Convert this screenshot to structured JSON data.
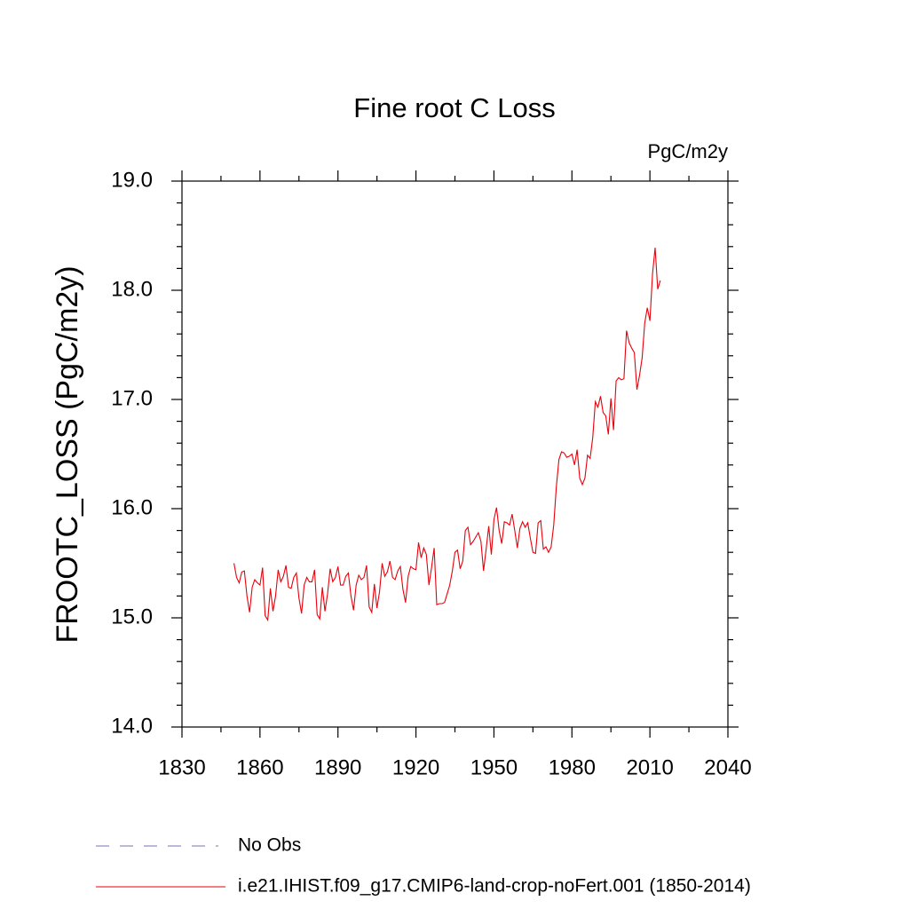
{
  "chart_data": {
    "type": "line",
    "title": "Fine root C Loss",
    "units": "PgC/m2y",
    "ylabel": "FROOTC_LOSS  (PgC/m2y)",
    "xlim": [
      1830,
      2040
    ],
    "xticks": [
      1830,
      1860,
      1890,
      1920,
      1950,
      1980,
      2010,
      2040
    ],
    "xminorticks": [
      1845,
      1875,
      1905,
      1935,
      1965,
      1995,
      2025
    ],
    "ylim": [
      14,
      19
    ],
    "yticks": [
      {
        "value": 14,
        "label": "14.0"
      },
      {
        "value": 15,
        "label": "15.0"
      },
      {
        "value": 16,
        "label": "16.0"
      },
      {
        "value": 17,
        "label": "17.0"
      },
      {
        "value": 18,
        "label": "18.0"
      },
      {
        "value": 19,
        "label": "19.0"
      }
    ],
    "yminorticks": [
      14.2,
      14.4,
      14.6,
      14.8,
      15.2,
      15.4,
      15.6,
      15.8,
      16.2,
      16.4,
      16.6,
      16.8,
      17.2,
      17.4,
      17.6,
      17.8,
      18.2,
      18.4,
      18.6,
      18.8
    ],
    "legend_items": [
      {
        "name": "No Obs",
        "color": "#7b6fb8",
        "dashed": true
      }
    ],
    "x": [
      1850,
      1851,
      1852,
      1853,
      1854,
      1855,
      1856,
      1857,
      1858,
      1859,
      1860,
      1861,
      1862,
      1863,
      1864,
      1865,
      1866,
      1867,
      1868,
      1869,
      1870,
      1871,
      1872,
      1873,
      1874,
      1875,
      1876,
      1877,
      1878,
      1879,
      1880,
      1881,
      1882,
      1883,
      1884,
      1885,
      1886,
      1887,
      1888,
      1889,
      1890,
      1891,
      1892,
      1893,
      1894,
      1895,
      1896,
      1897,
      1898,
      1899,
      1900,
      1901,
      1902,
      1903,
      1904,
      1905,
      1906,
      1907,
      1908,
      1909,
      1910,
      1911,
      1912,
      1913,
      1914,
      1915,
      1916,
      1917,
      1918,
      1919,
      1920,
      1921,
      1922,
      1923,
      1924,
      1925,
      1926,
      1927,
      1928,
      1929,
      1930,
      1931,
      1932,
      1933,
      1934,
      1935,
      1936,
      1937,
      1938,
      1939,
      1940,
      1941,
      1942,
      1943,
      1944,
      1945,
      1946,
      1947,
      1948,
      1949,
      1950,
      1951,
      1952,
      1953,
      1954,
      1955,
      1956,
      1957,
      1958,
      1959,
      1960,
      1961,
      1962,
      1963,
      1964,
      1965,
      1966,
      1967,
      1968,
      1969,
      1970,
      1971,
      1972,
      1973,
      1974,
      1975,
      1976,
      1977,
      1978,
      1979,
      1980,
      1981,
      1982,
      1983,
      1984,
      1985,
      1986,
      1987,
      1988,
      1989,
      1990,
      1991,
      1992,
      1993,
      1994,
      1995,
      1996,
      1997,
      1998,
      1999,
      2000,
      2001,
      2002,
      2003,
      2004,
      2005,
      2006,
      2007,
      2008,
      2009,
      2010,
      2011,
      2012,
      2013,
      2014
    ],
    "series": [
      {
        "name": "i.e21.IHIST.f09_g17.CMIP6-land-crop-noFert.001 (1850-2014)",
        "color": "#e8000b",
        "values": [
          15.5,
          15.37,
          15.32,
          15.42,
          15.43,
          15.2,
          15.05,
          15.28,
          15.35,
          15.32,
          15.3,
          15.46,
          15.02,
          14.98,
          15.27,
          15.06,
          15.2,
          15.44,
          15.33,
          15.38,
          15.48,
          15.28,
          15.27,
          15.37,
          15.41,
          15.18,
          15.04,
          15.3,
          15.37,
          15.33,
          15.33,
          15.44,
          15.03,
          14.99,
          15.28,
          15.06,
          15.22,
          15.45,
          15.33,
          15.37,
          15.47,
          15.3,
          15.3,
          15.38,
          15.41,
          15.2,
          15.07,
          15.3,
          15.39,
          15.35,
          15.37,
          15.48,
          15.1,
          15.05,
          15.31,
          15.09,
          15.24,
          15.5,
          15.38,
          15.42,
          15.52,
          15.37,
          15.35,
          15.43,
          15.47,
          15.26,
          15.14,
          15.38,
          15.47,
          15.45,
          15.44,
          15.69,
          15.55,
          15.64,
          15.58,
          15.3,
          15.46,
          15.64,
          15.12,
          15.13,
          15.13,
          15.14,
          15.22,
          15.3,
          15.43,
          15.6,
          15.62,
          15.45,
          15.52,
          15.8,
          15.83,
          15.67,
          15.7,
          15.74,
          15.78,
          15.7,
          15.43,
          15.63,
          15.84,
          15.58,
          15.9,
          16.01,
          15.8,
          15.68,
          15.88,
          15.87,
          15.85,
          15.95,
          15.8,
          15.64,
          15.82,
          15.88,
          15.83,
          15.87,
          15.73,
          15.6,
          15.59,
          15.87,
          15.89,
          15.63,
          15.65,
          15.6,
          15.65,
          15.85,
          16.2,
          16.45,
          16.52,
          16.51,
          16.47,
          16.48,
          16.5,
          16.4,
          16.54,
          16.28,
          16.22,
          16.28,
          16.49,
          16.46,
          16.65,
          16.98,
          16.93,
          17.03,
          16.88,
          16.85,
          16.68,
          17.01,
          16.72,
          17.17,
          17.2,
          17.18,
          17.19,
          17.63,
          17.52,
          17.47,
          17.43,
          17.09,
          17.22,
          17.38,
          17.7,
          17.84,
          17.72,
          18.15,
          18.39,
          18.01,
          18.09
        ]
      }
    ]
  }
}
